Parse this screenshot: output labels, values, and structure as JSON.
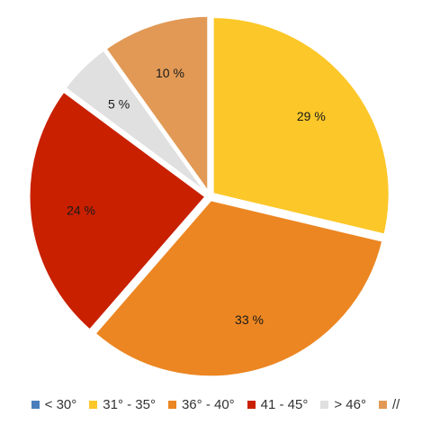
{
  "chart_data": {
    "type": "pie",
    "title": "",
    "categories": [
      "< 30°",
      "31° - 35°",
      "36° - 40°",
      "41 - 45°",
      "> 46°",
      "//"
    ],
    "values": [
      0,
      29,
      33,
      24,
      5,
      10
    ],
    "labels": [
      "",
      "29 %",
      "33 %",
      "24 %",
      "5 %",
      "10 %"
    ],
    "colors": [
      "#4a7ebb",
      "#fcc728",
      "#ec8622",
      "#c92000",
      "#e0e0e0",
      "#e19955"
    ],
    "start_angle": "top",
    "direction": "clockwise",
    "legend_position": "bottom"
  }
}
